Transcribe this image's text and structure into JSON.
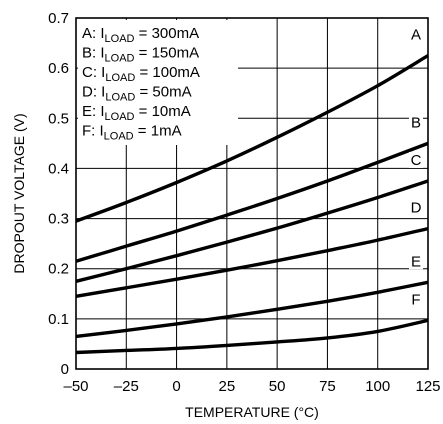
{
  "chart_data": {
    "type": "line",
    "title": "",
    "xlabel": "TEMPERATURE (°C)",
    "ylabel": "DROPOUT VOLTAGE (V)",
    "xlim": [
      -50,
      125
    ],
    "ylim": [
      0,
      0.7
    ],
    "x_ticks": [
      -50,
      -25,
      0,
      25,
      50,
      75,
      100,
      125
    ],
    "x_tick_labels": [
      "–50",
      "–25",
      "0",
      "25",
      "50",
      "75",
      "100",
      "125"
    ],
    "y_ticks": [
      0,
      0.1,
      0.2,
      0.3,
      0.4,
      0.5,
      0.6,
      0.7
    ],
    "y_tick_labels": [
      "0",
      "0.1",
      "0.2",
      "0.3",
      "0.4",
      "0.5",
      "0.6",
      "0.7"
    ],
    "grid": true,
    "legend_position": "top-left",
    "legend": [
      {
        "letter": "A",
        "prefix": "A: I",
        "sub": "LOAD",
        "suffix": " = 300mA"
      },
      {
        "letter": "B",
        "prefix": "B: I",
        "sub": "LOAD",
        "suffix": " = 150mA"
      },
      {
        "letter": "C",
        "prefix": "C: I",
        "sub": "LOAD",
        "suffix": " = 100mA"
      },
      {
        "letter": "D",
        "prefix": "D: I",
        "sub": "LOAD",
        "suffix": " = 50mA"
      },
      {
        "letter": "E",
        "prefix": "E: I",
        "sub": "LOAD",
        "suffix": " = 10mA"
      },
      {
        "letter": "F",
        "prefix": "F: I",
        "sub": "LOAD",
        "suffix": " = 1mA"
      }
    ],
    "series": [
      {
        "name": "A",
        "x": [
          -50,
          -25,
          0,
          25,
          50,
          75,
          100,
          125
        ],
        "y": [
          0.295,
          0.332,
          0.372,
          0.415,
          0.462,
          0.512,
          0.565,
          0.625
        ]
      },
      {
        "name": "B",
        "x": [
          -50,
          -25,
          0,
          25,
          50,
          75,
          100,
          125
        ],
        "y": [
          0.215,
          0.245,
          0.275,
          0.307,
          0.34,
          0.375,
          0.412,
          0.45
        ]
      },
      {
        "name": "C",
        "x": [
          -50,
          -25,
          0,
          25,
          50,
          75,
          100,
          125
        ],
        "y": [
          0.175,
          0.2,
          0.226,
          0.253,
          0.281,
          0.311,
          0.342,
          0.375
        ]
      },
      {
        "name": "D",
        "x": [
          -50,
          -25,
          0,
          25,
          50,
          75,
          100,
          125
        ],
        "y": [
          0.145,
          0.162,
          0.179,
          0.197,
          0.216,
          0.236,
          0.257,
          0.28
        ]
      },
      {
        "name": "E",
        "x": [
          -50,
          -25,
          0,
          25,
          50,
          75,
          100,
          125
        ],
        "y": [
          0.065,
          0.077,
          0.09,
          0.104,
          0.119,
          0.135,
          0.153,
          0.173
        ]
      },
      {
        "name": "F",
        "x": [
          -50,
          -25,
          0,
          25,
          50,
          75,
          100,
          125
        ],
        "y": [
          0.033,
          0.037,
          0.041,
          0.047,
          0.054,
          0.062,
          0.075,
          0.097
        ]
      }
    ],
    "line_color": "#000000",
    "grid_color": "#000000",
    "background_color": "#ffffff"
  }
}
